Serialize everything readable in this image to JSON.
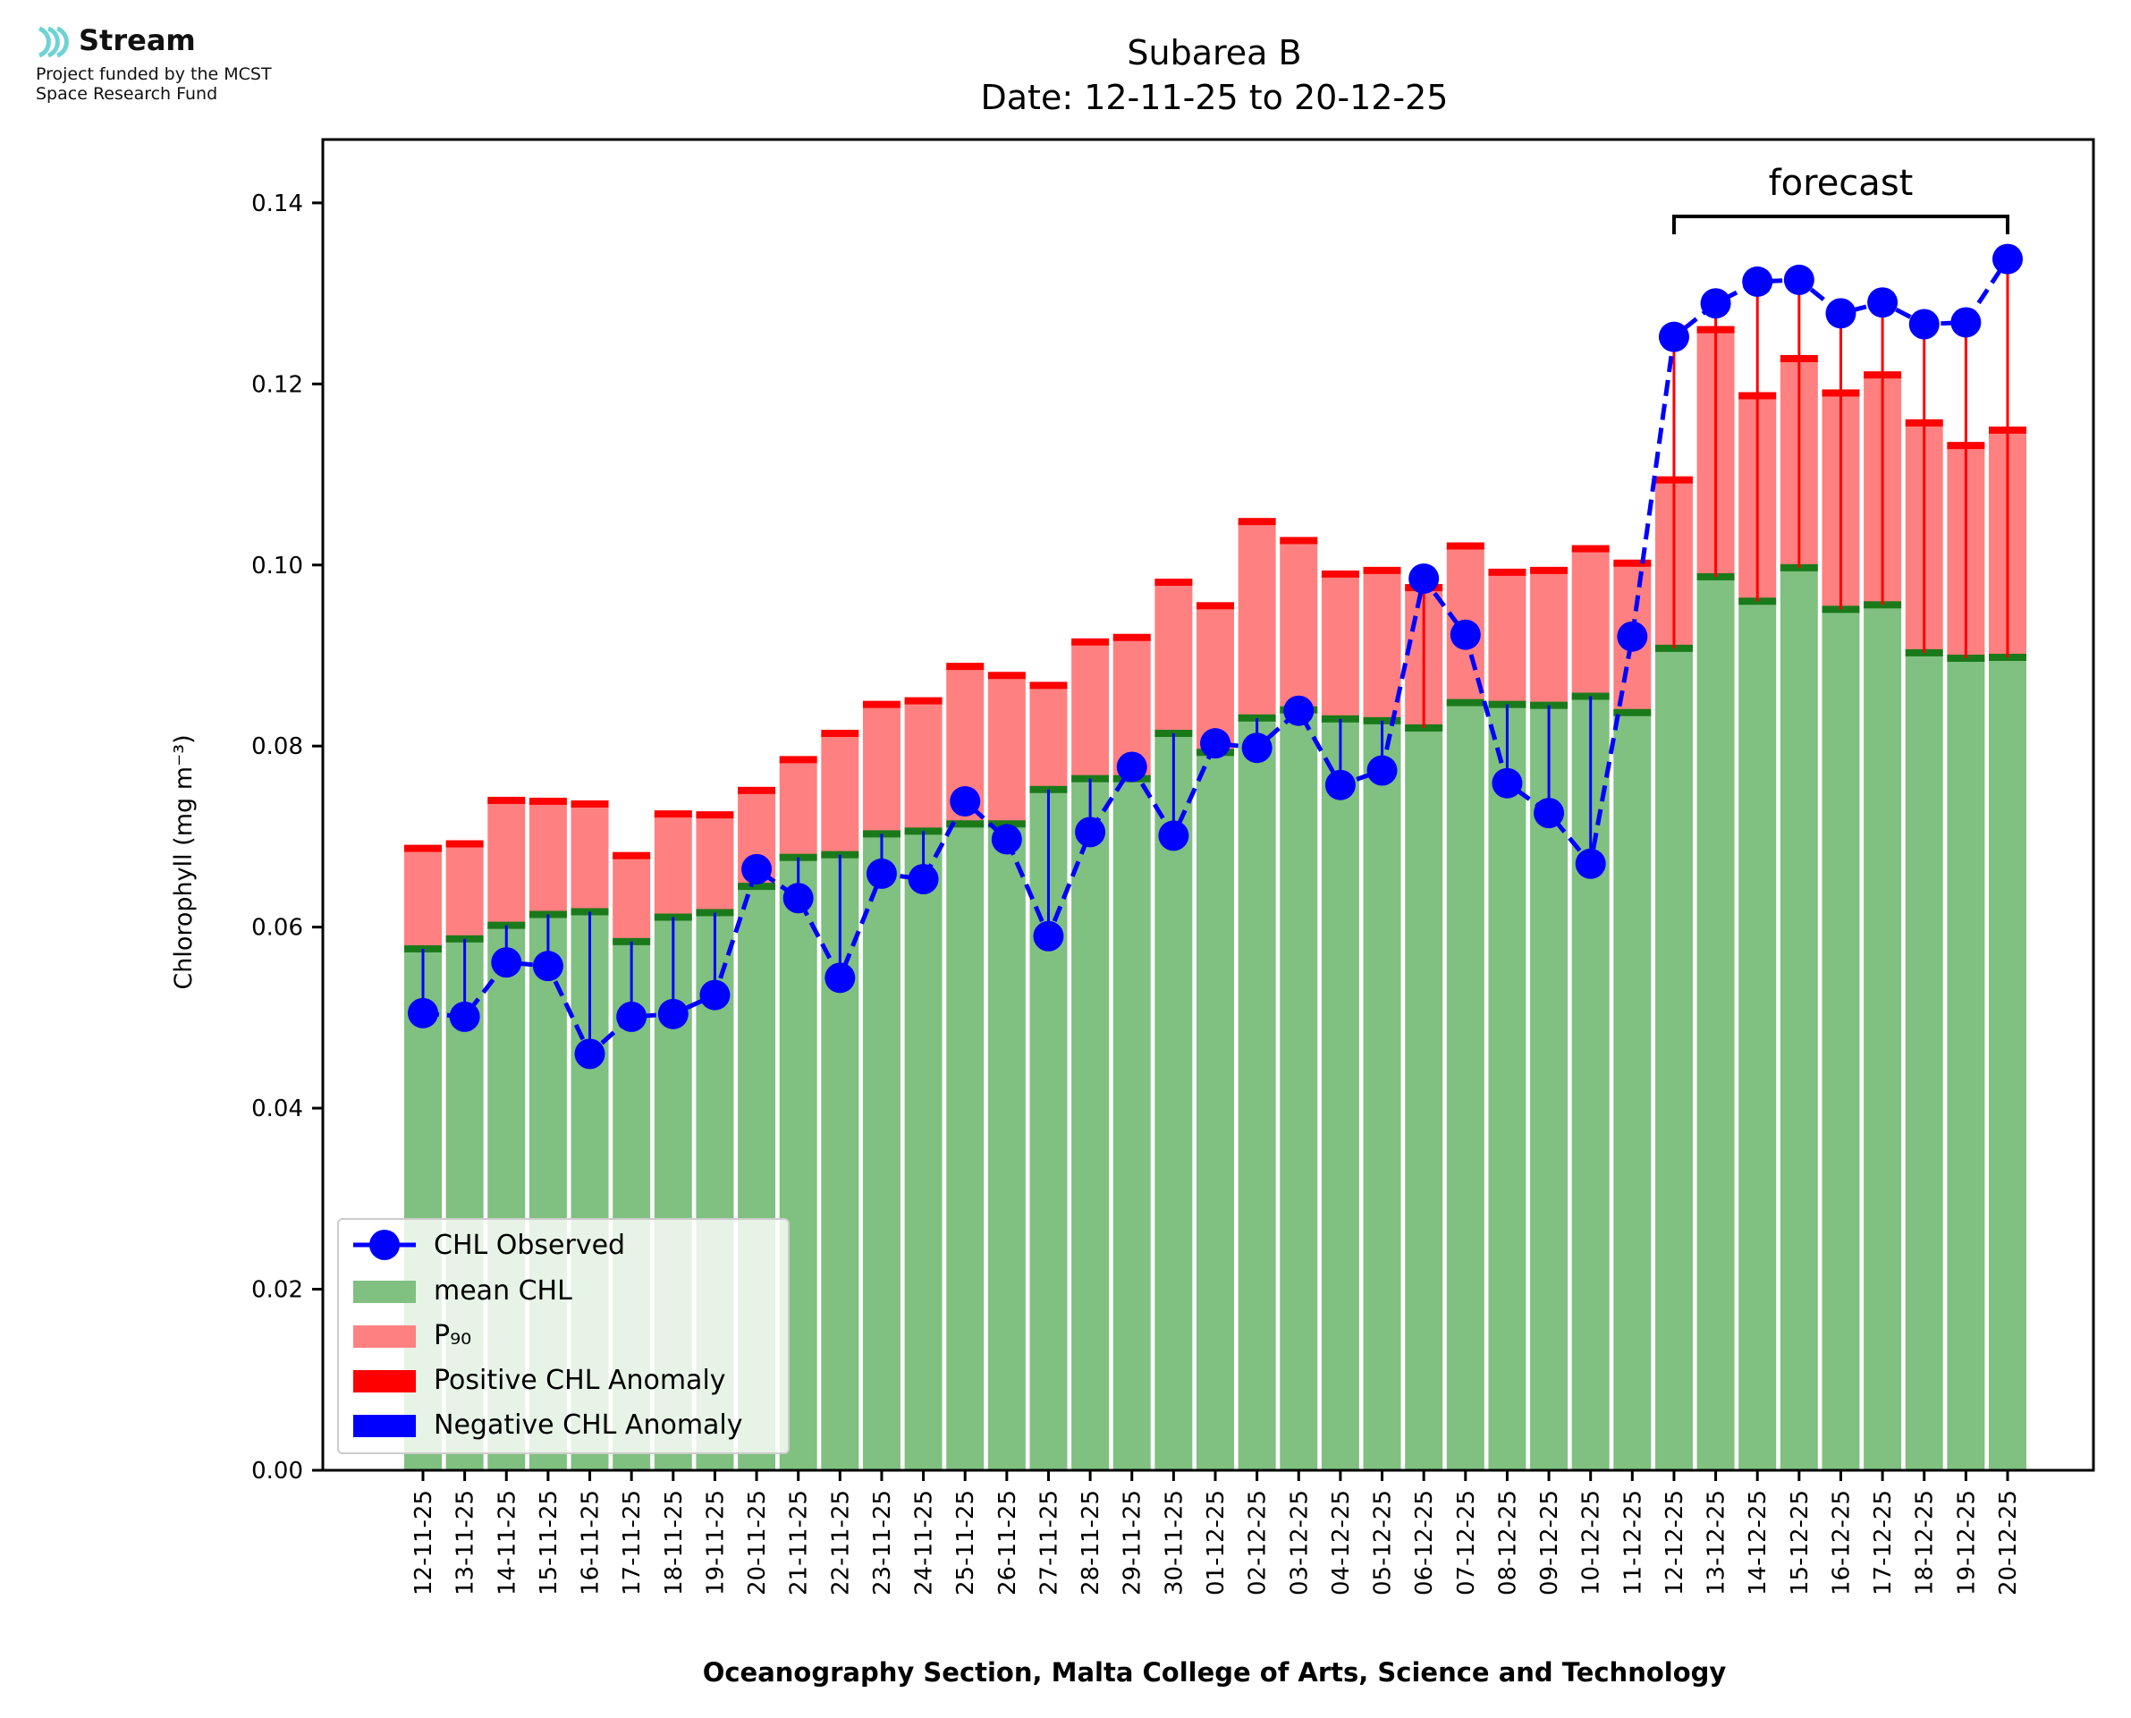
{
  "logo": {
    "name": "Stream",
    "line1": "Project funded by the MCST",
    "line2": "Space Research Fund",
    "color": "#6fd3d3"
  },
  "colors": {
    "mean": "#80c080",
    "mean_edge": "#1a7a1a",
    "p90": "#ff8080",
    "positive": "#ff0000",
    "negative": "#0000ff",
    "observed": "#0000ff"
  },
  "chart_data": {
    "type": "bar",
    "title": "Subarea B",
    "subtitle": "Date: 12-11-25 to 20-12-25",
    "xlabel": "Oceanography Section, Malta College of Arts, Science and Technology",
    "ylabel": "Chlorophyll (mg m⁻³)",
    "ylim": [
      0,
      0.147
    ],
    "yticks": [
      "0.00",
      "0.02",
      "0.04",
      "0.06",
      "0.08",
      "0.10",
      "0.12",
      "0.14"
    ],
    "grid": false,
    "legend_position": "lower-left",
    "annotation": {
      "text": "forecast",
      "from": "12-12-25",
      "to": "20-12-25"
    },
    "categories": [
      "12-11-25",
      "13-11-25",
      "14-11-25",
      "15-11-25",
      "16-11-25",
      "17-11-25",
      "18-11-25",
      "19-11-25",
      "20-11-25",
      "21-11-25",
      "22-11-25",
      "23-11-25",
      "24-11-25",
      "25-11-25",
      "26-11-25",
      "27-11-25",
      "28-11-25",
      "29-11-25",
      "30-11-25",
      "01-12-25",
      "02-12-25",
      "03-12-25",
      "04-12-25",
      "05-12-25",
      "06-12-25",
      "07-12-25",
      "08-12-25",
      "09-12-25",
      "10-12-25",
      "11-12-25",
      "12-12-25",
      "13-12-25",
      "14-12-25",
      "15-12-25",
      "16-12-25",
      "17-12-25",
      "18-12-25",
      "19-12-25",
      "20-12-25"
    ],
    "series": [
      {
        "name": "mean CHL",
        "values": [
          0.0576,
          0.0587,
          0.0602,
          0.0614,
          0.0617,
          0.0584,
          0.0611,
          0.0616,
          0.0645,
          0.0677,
          0.068,
          0.0703,
          0.0706,
          0.0714,
          0.0714,
          0.0752,
          0.0764,
          0.0764,
          0.0814,
          0.0793,
          0.0831,
          0.084,
          0.083,
          0.0828,
          0.082,
          0.0848,
          0.0846,
          0.0845,
          0.0855,
          0.0837,
          0.0908,
          0.0987,
          0.096,
          0.0997,
          0.0951,
          0.0956,
          0.0903,
          0.0897,
          0.0898
        ]
      },
      {
        "name": "P₉₀",
        "values": [
          0.0687,
          0.0692,
          0.074,
          0.0739,
          0.0736,
          0.0679,
          0.0725,
          0.0724,
          0.0751,
          0.0785,
          0.0814,
          0.0846,
          0.085,
          0.0888,
          0.0878,
          0.0867,
          0.0915,
          0.092,
          0.0981,
          0.0955,
          0.1048,
          0.1027,
          0.099,
          0.0994,
          0.0975,
          0.1021,
          0.0992,
          0.0994,
          0.1018,
          0.1002,
          0.1094,
          0.126,
          0.1187,
          0.1228,
          0.119,
          0.121,
          0.1157,
          0.1132,
          0.1149
        ]
      },
      {
        "name": "CHL Observed",
        "values": [
          0.0505,
          0.0501,
          0.0561,
          0.0557,
          0.046,
          0.0501,
          0.0504,
          0.0525,
          0.0664,
          0.0632,
          0.0544,
          0.0659,
          0.0653,
          0.0739,
          0.0697,
          0.059,
          0.0705,
          0.0777,
          0.0701,
          0.0803,
          0.0798,
          0.0839,
          0.0757,
          0.0773,
          0.0985,
          0.0923,
          0.0759,
          0.0726,
          0.067,
          0.0921,
          0.1252,
          0.1289,
          0.1313,
          0.1315,
          0.1278,
          0.129,
          0.1266,
          0.1268,
          0.1338
        ]
      }
    ],
    "legend": [
      "CHL Observed",
      "mean CHL",
      "P₉₀",
      "Positive CHL Anomaly",
      "Negative CHL Anomaly"
    ]
  }
}
